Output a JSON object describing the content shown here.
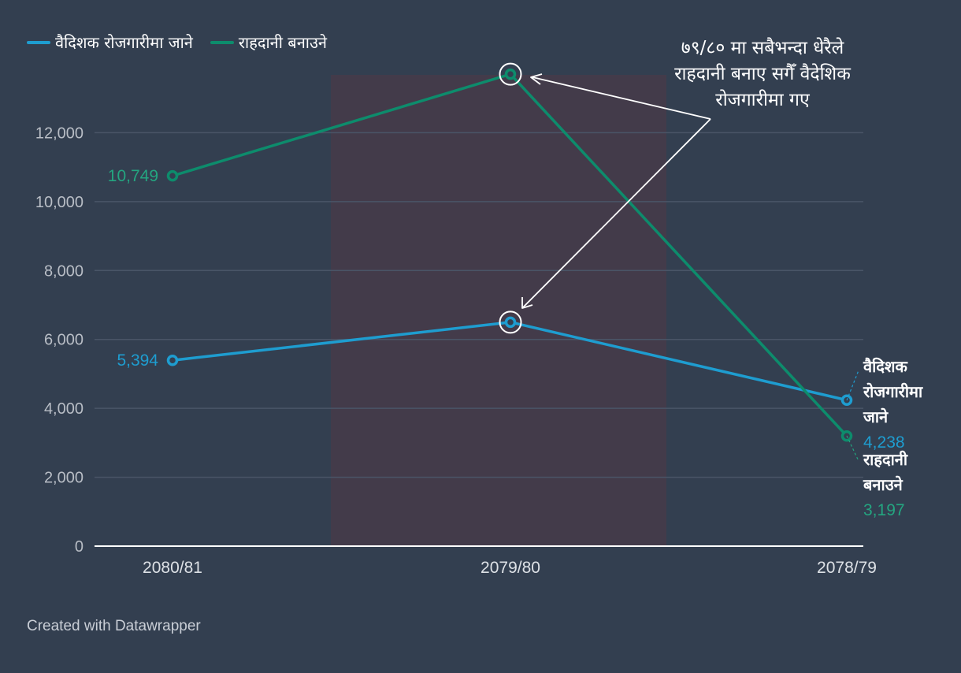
{
  "colors": {
    "background": "#333f50",
    "highlight_band": "#433b4a",
    "grid": "#4a5567",
    "axis": "#ffffff",
    "tick_label": "#b9bec6",
    "series_blue": "#1e9dd0",
    "series_green": "#0d8c6c",
    "label_green": "#24a580",
    "annotation": "#ffffff"
  },
  "footer": {
    "credit": "Created with Datawrapper"
  },
  "annotation": {
    "lines": [
      "७९/८० मा सबैभन्दा धेरैले",
      "राहदानी बनाए सगैँ वैदेशिक",
      "रोजगारीमा गए"
    ]
  },
  "chart_data": {
    "type": "line",
    "categories": [
      "2080/81",
      "2079/80",
      "2078/79"
    ],
    "ylim": [
      0,
      14000
    ],
    "yticks": [
      0,
      2000,
      4000,
      6000,
      8000,
      10000,
      12000
    ],
    "ytick_labels": [
      "0",
      "2,000",
      "4,000",
      "6,000",
      "8,000",
      "10,000",
      "12,000"
    ],
    "grid": true,
    "legend_position": "top-left",
    "highlight_category": "2079/80",
    "series": [
      {
        "name": "वैदिशक रोजगारीमा जाने",
        "end_label_lines": [
          "वैदिशक",
          "रोजगारीमा",
          "जाने"
        ],
        "values": [
          5394,
          6500,
          4238
        ],
        "value_labels": [
          "5,394",
          "",
          "4,238"
        ],
        "color": "#1e9dd0"
      },
      {
        "name": "राहदानी बनाउने",
        "end_label_lines": [
          "राहदानी",
          "बनाउने"
        ],
        "values": [
          10749,
          13700,
          3197
        ],
        "value_labels": [
          "10,749",
          "",
          "3,197"
        ],
        "color": "#0d8c6c"
      }
    ]
  }
}
